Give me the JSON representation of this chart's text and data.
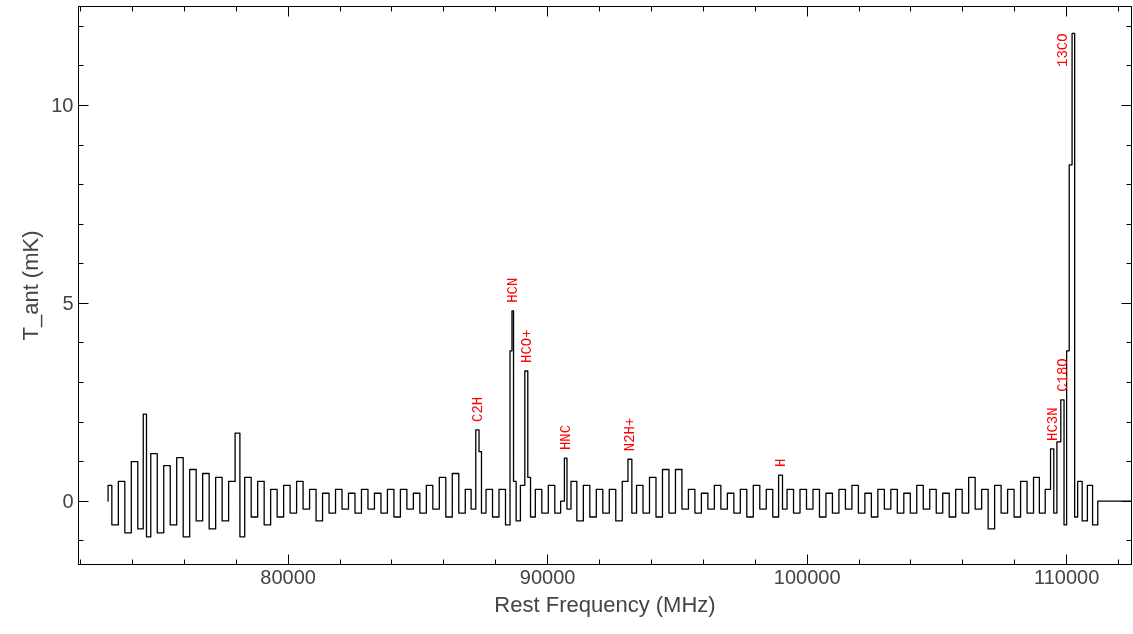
{
  "chart_data": {
    "type": "step",
    "xlabel": "Rest Frequency (MHz)",
    "ylabel": "T_ant (mK)",
    "xlim": [
      71920,
      112500
    ],
    "ylim": [
      -1.6,
      12.5
    ],
    "xticks": [
      80000,
      90000,
      100000,
      110000
    ],
    "yticks": [
      0,
      5,
      10
    ],
    "grid": false,
    "series": [
      {
        "color": "#000000",
        "x": [
          73040,
          73080,
          73330,
          73580,
          73830,
          74080,
          74330,
          74500,
          74580,
          74830,
          75080,
          75330,
          75580,
          75830,
          76080,
          76330,
          76580,
          76830,
          77080,
          77330,
          77580,
          77830,
          78080,
          78200,
          78450,
          78700,
          78950,
          79200,
          79450,
          79700,
          79950,
          80200,
          80450,
          80700,
          80950,
          81200,
          81450,
          81700,
          81950,
          82200,
          82450,
          82700,
          82950,
          83200,
          83450,
          83700,
          83950,
          84200,
          84450,
          84700,
          84950,
          85200,
          85450,
          85700,
          85950,
          86200,
          86450,
          86700,
          86950,
          87150,
          87310,
          87400,
          87500,
          87750,
          88000,
          88250,
          88500,
          88600,
          88650,
          88720,
          88850,
          89050,
          89190,
          89280,
          89400,
          89650,
          89900,
          90150,
          90400,
          90600,
          90690,
          90800,
          91000,
          91250,
          91500,
          91750,
          92000,
          92250,
          92500,
          92750,
          93000,
          93190,
          93300,
          93550,
          93800,
          94050,
          94300,
          94550,
          94800,
          95050,
          95300,
          95550,
          95800,
          96050,
          96300,
          96550,
          96800,
          97050,
          97300,
          97550,
          97800,
          98050,
          98300,
          98550,
          98800,
          99000,
          99100,
          99350,
          99600,
          99850,
          100100,
          100350,
          100600,
          100850,
          101100,
          101350,
          101600,
          101850,
          102100,
          102350,
          102600,
          102850,
          103100,
          103350,
          103600,
          103850,
          104100,
          104350,
          104600,
          104850,
          105100,
          105350,
          105600,
          105850,
          106100,
          106350,
          106600,
          106850,
          107100,
          107350,
          107600,
          107850,
          108100,
          108350,
          108600,
          108850,
          109050,
          109300,
          109460,
          109550,
          109700,
          109850,
          109950,
          110050,
          110150,
          110270,
          110350,
          110500,
          110700,
          110900,
          111100,
          111300,
          112500
        ],
        "values": [
          0,
          0.4,
          -0.6,
          0.5,
          -0.8,
          1.0,
          -0.7,
          2.2,
          -0.9,
          1.2,
          -0.8,
          0.9,
          -0.6,
          1.1,
          -0.9,
          0.8,
          -0.5,
          0.7,
          -0.7,
          0.6,
          -0.5,
          0.5,
          1.72,
          -0.9,
          0.6,
          -0.4,
          0.5,
          -0.6,
          0.3,
          -0.4,
          0.4,
          -0.3,
          0.5,
          -0.2,
          0.3,
          -0.5,
          0.2,
          -0.3,
          0.3,
          -0.2,
          0.2,
          -0.3,
          0.3,
          -0.2,
          0.2,
          -0.3,
          0.3,
          -0.4,
          0.3,
          -0.2,
          0.2,
          -0.3,
          0.4,
          -0.2,
          0.6,
          -0.4,
          0.7,
          -0.3,
          0.3,
          -0.2,
          1.8,
          1.25,
          -0.3,
          0.3,
          -0.4,
          0.3,
          -0.6,
          3.8,
          4.81,
          0.5,
          -0.5,
          0.4,
          3.29,
          0.6,
          -0.4,
          0.3,
          -0.3,
          0.4,
          -0.3,
          0.0,
          1.09,
          -0.2,
          0.5,
          -0.5,
          0.4,
          -0.4,
          0.3,
          -0.3,
          0.3,
          -0.5,
          0.5,
          1.06,
          -0.3,
          0.4,
          -0.3,
          0.6,
          -0.4,
          0.8,
          -0.3,
          0.8,
          -0.2,
          0.3,
          -0.3,
          0.2,
          -0.2,
          0.4,
          -0.2,
          0.2,
          -0.3,
          0.3,
          -0.4,
          0.4,
          -0.2,
          0.3,
          -0.4,
          0.66,
          -0.2,
          0.3,
          -0.3,
          0.3,
          -0.2,
          0.3,
          -0.4,
          0.2,
          -0.3,
          0.3,
          -0.2,
          0.4,
          -0.3,
          0.2,
          -0.4,
          0.3,
          -0.2,
          0.3,
          -0.3,
          0.2,
          -0.3,
          0.4,
          -0.2,
          0.3,
          -0.3,
          0.2,
          -0.4,
          0.3,
          -0.3,
          0.6,
          -0.2,
          0.3,
          -0.7,
          0.4,
          -0.3,
          0.3,
          -0.4,
          0.5,
          -0.3,
          0.6,
          -0.3,
          0.3,
          1.32,
          -0.3,
          1.5,
          2.56,
          -0.6,
          3.8,
          8.5,
          11.82,
          -0.4,
          0.5,
          -0.5,
          0.4,
          -0.6,
          0.0,
          0.0
        ]
      }
    ],
    "annotations": [
      {
        "text": "C2H",
        "x": 87310,
        "y": 1.8
      },
      {
        "text": "HCN",
        "x": 88650,
        "y": 4.81
      },
      {
        "text": "HCO+",
        "x": 89190,
        "y": 3.29
      },
      {
        "text": "HNC",
        "x": 90690,
        "y": 1.09
      },
      {
        "text": "N2H+",
        "x": 93190,
        "y": 1.06
      },
      {
        "text": "H",
        "x": 99000,
        "y": 0.66
      },
      {
        "text": "HC3N",
        "x": 109460,
        "y": 1.32
      },
      {
        "text": "C18O",
        "x": 109850,
        "y": 2.56
      },
      {
        "text": "13CO",
        "x": 110270,
        "y": 11.82
      }
    ]
  }
}
